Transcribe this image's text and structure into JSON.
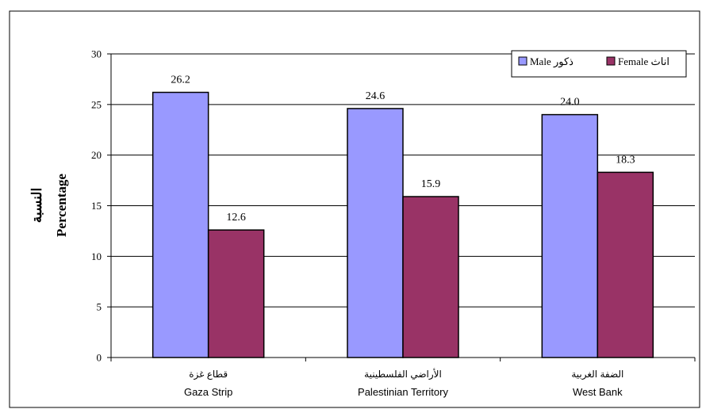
{
  "chart_data": {
    "type": "bar",
    "categories": [
      {
        "ar": "قطاع غزة",
        "en": "Gaza Strip"
      },
      {
        "ar": "الأراضي الفلسطينية",
        "en": "Palestinian Territory"
      },
      {
        "ar": "الضفة الغربية",
        "en": "West Bank"
      }
    ],
    "series": [
      {
        "name": "Male ذكور",
        "color": "#9999ff",
        "values": [
          26.2,
          24.6,
          24.0
        ]
      },
      {
        "name": "Female اناث",
        "color": "#993366",
        "values": [
          12.6,
          15.9,
          18.3
        ]
      }
    ],
    "data_labels": [
      [
        "26.2",
        "24.6",
        "24.0"
      ],
      [
        "12.6",
        "15.9",
        "18.3"
      ]
    ],
    "ylabel": "Percentage",
    "ylabel_ar": "النسبة",
    "ylim": [
      0,
      30
    ],
    "yticks": [
      0,
      5,
      10,
      15,
      20,
      25,
      30
    ],
    "grid": true,
    "legend_position": "top-right"
  }
}
